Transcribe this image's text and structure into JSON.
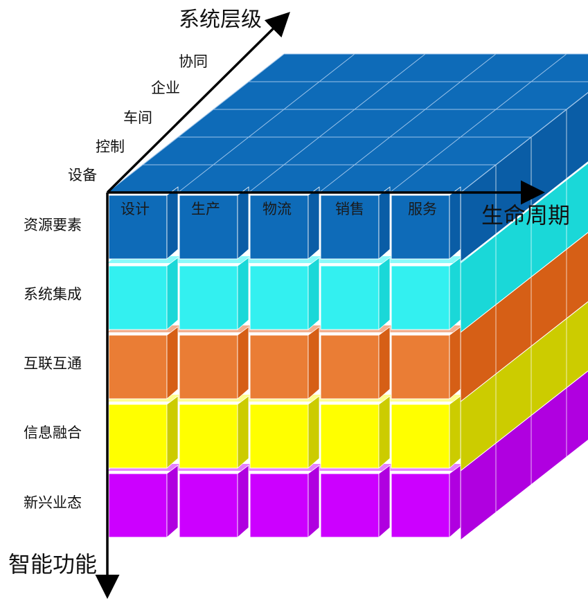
{
  "axes": {
    "system_level": "系统层级",
    "lifecycle": "生命周期",
    "intelligent_function": "智能功能"
  },
  "system_levels": [
    "设备",
    "控制",
    "车间",
    "企业",
    "协同"
  ],
  "lifecycle_stages": [
    "设计",
    "生产",
    "物流",
    "销售",
    "服务"
  ],
  "functions": [
    {
      "label": "资源要素",
      "color": "#0E6BB8"
    },
    {
      "label": "系统集成",
      "color": "#33F0F0"
    },
    {
      "label": "互联互通",
      "color": "#EA7D35"
    },
    {
      "label": "信息融合",
      "color": "#FFFF00"
    },
    {
      "label": "新兴业态",
      "color": "#CC00FF"
    }
  ],
  "colors": {
    "top_face": "#0E6BB8",
    "side_resource": "#0A5DA6",
    "side_integration": "#1AD8D8",
    "side_interconnect": "#D65F16",
    "side_fusion": "#CCCC00",
    "side_emerging": "#B000E0",
    "axis": "#000000"
  }
}
